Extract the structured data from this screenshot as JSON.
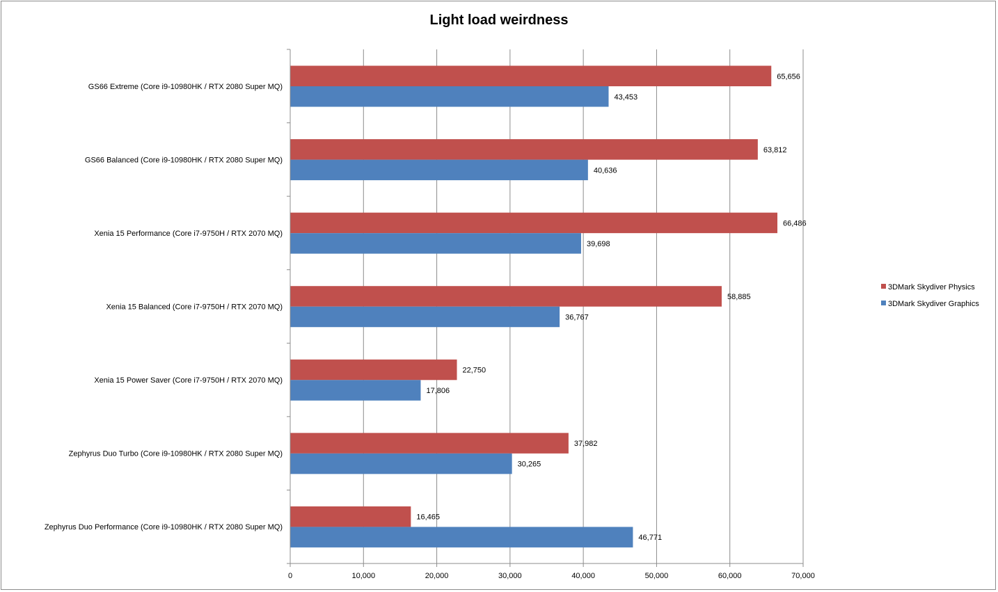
{
  "chart_data": {
    "type": "bar",
    "orientation": "horizontal",
    "title": "Light load weirdness",
    "xlabel": "",
    "ylabel": "",
    "xlim": [
      0,
      70000
    ],
    "ticks": [
      0,
      10000,
      20000,
      30000,
      40000,
      50000,
      60000,
      70000
    ],
    "tick_labels": [
      "0",
      "10,000",
      "20,000",
      "30,000",
      "40,000",
      "50,000",
      "60,000",
      "70,000"
    ],
    "grid": true,
    "legend_position": "right",
    "categories": [
      "GS66 Extreme (Core i9-10980HK / RTX  2080 Super MQ)",
      "GS66 Balanced (Core i9-10980HK / RTX  2080 Super MQ)",
      "Xenia 15 Performance  (Core i7-9750H / RTX  2070 MQ)",
      "Xenia 15 Balanced (Core i7-9750H / RTX  2070 MQ)",
      "Xenia 15 Power Saver (Core i7-9750H / RTX  2070 MQ)",
      "Zephyrus Duo Turbo (Core i9-10980HK / RTX  2080 Super MQ)",
      "Zephyrus Duo Performance (Core i9-10980HK / RTX  2080 Super MQ)"
    ],
    "series": [
      {
        "name": "3DMark Skydiver Physics",
        "color": "#c0504d",
        "values": [
          65656,
          63812,
          66486,
          58885,
          22750,
          37982,
          16465
        ],
        "labels": [
          "65,656",
          "63,812",
          "66,486",
          "58,885",
          "22,750",
          "37,982",
          "16,465"
        ]
      },
      {
        "name": "3DMark Skydiver Graphics",
        "color": "#4f81bd",
        "values": [
          43453,
          40636,
          39698,
          36767,
          17806,
          30265,
          46771
        ],
        "labels": [
          "43,453",
          "40,636",
          "39,698",
          "36,767",
          "17,806",
          "30,265",
          "46,771"
        ]
      }
    ]
  }
}
